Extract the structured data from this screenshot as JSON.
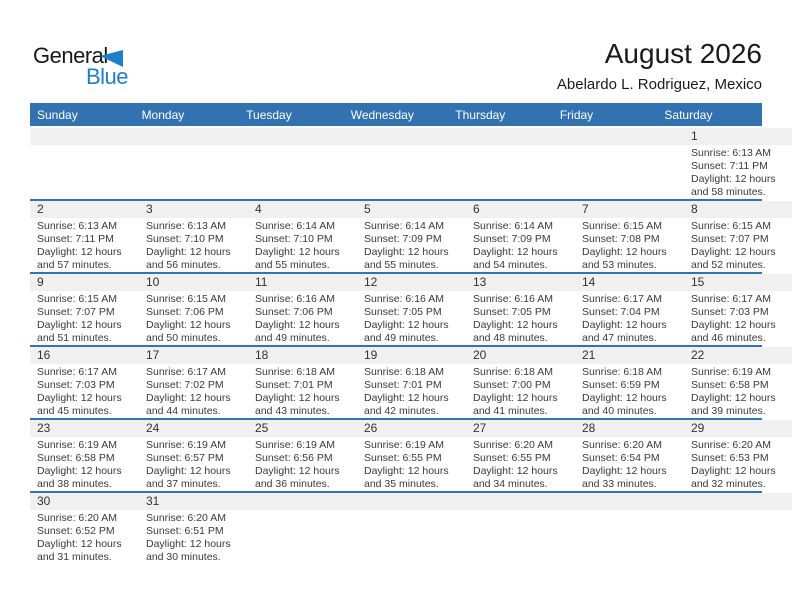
{
  "logo": {
    "general": "General",
    "blue": "Blue"
  },
  "header": {
    "title": "August 2026",
    "subtitle": "Abelardo L. Rodriguez, Mexico"
  },
  "colors": {
    "header_bg": "#3272b1",
    "row_divider": "#2e75b6",
    "day_band_bg": "#f0f0f0",
    "logo_blue": "#1e7ec8"
  },
  "calendar": {
    "weekday_headers": [
      "Sunday",
      "Monday",
      "Tuesday",
      "Wednesday",
      "Thursday",
      "Friday",
      "Saturday"
    ],
    "first_day_column": 6,
    "rows": 6,
    "days": [
      {
        "day": "1",
        "sunrise": "Sunrise: 6:13 AM",
        "sunset": "Sunset: 7:11 PM",
        "daylight": "Daylight: 12 hours and 58 minutes."
      },
      {
        "day": "2",
        "sunrise": "Sunrise: 6:13 AM",
        "sunset": "Sunset: 7:11 PM",
        "daylight": "Daylight: 12 hours and 57 minutes."
      },
      {
        "day": "3",
        "sunrise": "Sunrise: 6:13 AM",
        "sunset": "Sunset: 7:10 PM",
        "daylight": "Daylight: 12 hours and 56 minutes."
      },
      {
        "day": "4",
        "sunrise": "Sunrise: 6:14 AM",
        "sunset": "Sunset: 7:10 PM",
        "daylight": "Daylight: 12 hours and 55 minutes."
      },
      {
        "day": "5",
        "sunrise": "Sunrise: 6:14 AM",
        "sunset": "Sunset: 7:09 PM",
        "daylight": "Daylight: 12 hours and 55 minutes."
      },
      {
        "day": "6",
        "sunrise": "Sunrise: 6:14 AM",
        "sunset": "Sunset: 7:09 PM",
        "daylight": "Daylight: 12 hours and 54 minutes."
      },
      {
        "day": "7",
        "sunrise": "Sunrise: 6:15 AM",
        "sunset": "Sunset: 7:08 PM",
        "daylight": "Daylight: 12 hours and 53 minutes."
      },
      {
        "day": "8",
        "sunrise": "Sunrise: 6:15 AM",
        "sunset": "Sunset: 7:07 PM",
        "daylight": "Daylight: 12 hours and 52 minutes."
      },
      {
        "day": "9",
        "sunrise": "Sunrise: 6:15 AM",
        "sunset": "Sunset: 7:07 PM",
        "daylight": "Daylight: 12 hours and 51 minutes."
      },
      {
        "day": "10",
        "sunrise": "Sunrise: 6:15 AM",
        "sunset": "Sunset: 7:06 PM",
        "daylight": "Daylight: 12 hours and 50 minutes."
      },
      {
        "day": "11",
        "sunrise": "Sunrise: 6:16 AM",
        "sunset": "Sunset: 7:06 PM",
        "daylight": "Daylight: 12 hours and 49 minutes."
      },
      {
        "day": "12",
        "sunrise": "Sunrise: 6:16 AM",
        "sunset": "Sunset: 7:05 PM",
        "daylight": "Daylight: 12 hours and 49 minutes."
      },
      {
        "day": "13",
        "sunrise": "Sunrise: 6:16 AM",
        "sunset": "Sunset: 7:05 PM",
        "daylight": "Daylight: 12 hours and 48 minutes."
      },
      {
        "day": "14",
        "sunrise": "Sunrise: 6:17 AM",
        "sunset": "Sunset: 7:04 PM",
        "daylight": "Daylight: 12 hours and 47 minutes."
      },
      {
        "day": "15",
        "sunrise": "Sunrise: 6:17 AM",
        "sunset": "Sunset: 7:03 PM",
        "daylight": "Daylight: 12 hours and 46 minutes."
      },
      {
        "day": "16",
        "sunrise": "Sunrise: 6:17 AM",
        "sunset": "Sunset: 7:03 PM",
        "daylight": "Daylight: 12 hours and 45 minutes."
      },
      {
        "day": "17",
        "sunrise": "Sunrise: 6:17 AM",
        "sunset": "Sunset: 7:02 PM",
        "daylight": "Daylight: 12 hours and 44 minutes."
      },
      {
        "day": "18",
        "sunrise": "Sunrise: 6:18 AM",
        "sunset": "Sunset: 7:01 PM",
        "daylight": "Daylight: 12 hours and 43 minutes."
      },
      {
        "day": "19",
        "sunrise": "Sunrise: 6:18 AM",
        "sunset": "Sunset: 7:01 PM",
        "daylight": "Daylight: 12 hours and 42 minutes."
      },
      {
        "day": "20",
        "sunrise": "Sunrise: 6:18 AM",
        "sunset": "Sunset: 7:00 PM",
        "daylight": "Daylight: 12 hours and 41 minutes."
      },
      {
        "day": "21",
        "sunrise": "Sunrise: 6:18 AM",
        "sunset": "Sunset: 6:59 PM",
        "daylight": "Daylight: 12 hours and 40 minutes."
      },
      {
        "day": "22",
        "sunrise": "Sunrise: 6:19 AM",
        "sunset": "Sunset: 6:58 PM",
        "daylight": "Daylight: 12 hours and 39 minutes."
      },
      {
        "day": "23",
        "sunrise": "Sunrise: 6:19 AM",
        "sunset": "Sunset: 6:58 PM",
        "daylight": "Daylight: 12 hours and 38 minutes."
      },
      {
        "day": "24",
        "sunrise": "Sunrise: 6:19 AM",
        "sunset": "Sunset: 6:57 PM",
        "daylight": "Daylight: 12 hours and 37 minutes."
      },
      {
        "day": "25",
        "sunrise": "Sunrise: 6:19 AM",
        "sunset": "Sunset: 6:56 PM",
        "daylight": "Daylight: 12 hours and 36 minutes."
      },
      {
        "day": "26",
        "sunrise": "Sunrise: 6:19 AM",
        "sunset": "Sunset: 6:55 PM",
        "daylight": "Daylight: 12 hours and 35 minutes."
      },
      {
        "day": "27",
        "sunrise": "Sunrise: 6:20 AM",
        "sunset": "Sunset: 6:55 PM",
        "daylight": "Daylight: 12 hours and 34 minutes."
      },
      {
        "day": "28",
        "sunrise": "Sunrise: 6:20 AM",
        "sunset": "Sunset: 6:54 PM",
        "daylight": "Daylight: 12 hours and 33 minutes."
      },
      {
        "day": "29",
        "sunrise": "Sunrise: 6:20 AM",
        "sunset": "Sunset: 6:53 PM",
        "daylight": "Daylight: 12 hours and 32 minutes."
      },
      {
        "day": "30",
        "sunrise": "Sunrise: 6:20 AM",
        "sunset": "Sunset: 6:52 PM",
        "daylight": "Daylight: 12 hours and 31 minutes."
      },
      {
        "day": "31",
        "sunrise": "Sunrise: 6:20 AM",
        "sunset": "Sunset: 6:51 PM",
        "daylight": "Daylight: 12 hours and 30 minutes."
      }
    ]
  }
}
